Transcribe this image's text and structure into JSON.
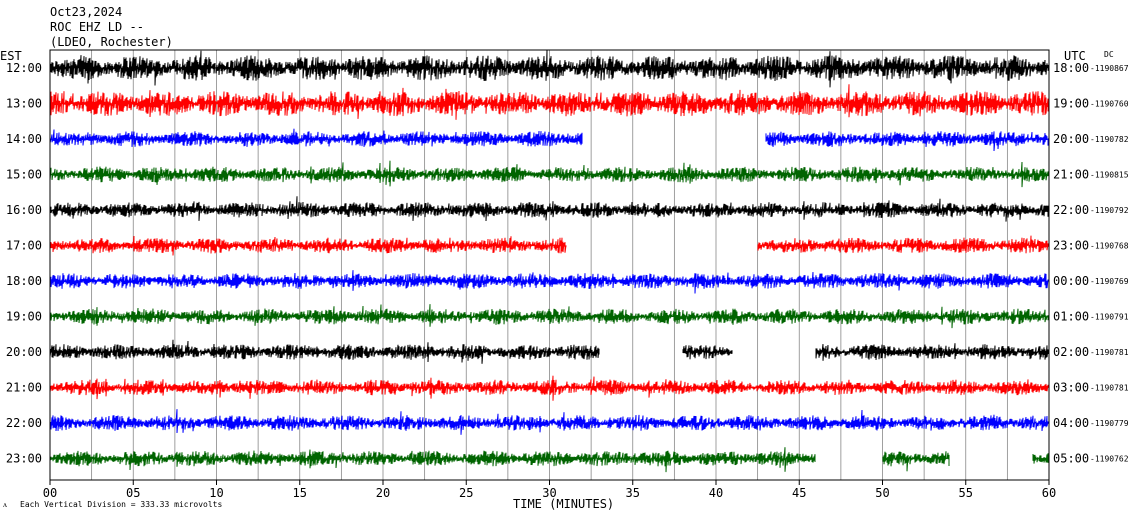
{
  "header": {
    "date": "Oct23,2024",
    "station": "ROC EHZ LD --",
    "network": "(LDEO, Rochester)"
  },
  "left_axis_title": "EST",
  "right_axis_title": "UTC",
  "dc_label": "DC",
  "footer": {
    "time_label": "TIME (MINUTES)",
    "scale_note": "Each Vertical Division =  333.33 microvolts",
    "scale_mark": "ᴧ"
  },
  "chart_data": {
    "type": "line",
    "title": "",
    "xlabel": "TIME (MINUTES)",
    "ylabel": "",
    "xlim": [
      0,
      60
    ],
    "x_ticks": [
      "00",
      "05",
      "10",
      "15",
      "20",
      "25",
      "30",
      "35",
      "40",
      "45",
      "50",
      "55",
      "60"
    ],
    "grid_x_every_minutes": 2.5,
    "trace_colors": [
      "#000000",
      "#ff0000",
      "#0000ff",
      "#006400"
    ],
    "rows": [
      {
        "local": "12:00",
        "utc": "18:00",
        "dc_offset": "-1190867",
        "color": "#000000",
        "amplitude": "high",
        "gaps": []
      },
      {
        "local": "13:00",
        "utc": "19:00",
        "dc_offset": "-1190760",
        "color": "#ff0000",
        "amplitude": "high",
        "gaps": []
      },
      {
        "local": "14:00",
        "utc": "20:00",
        "dc_offset": "-1190782",
        "color": "#0000ff",
        "amplitude": "medium",
        "gaps": [
          [
            32,
            43
          ]
        ]
      },
      {
        "local": "15:00",
        "utc": "21:00",
        "dc_offset": "-1190815",
        "color": "#006400",
        "amplitude": "medium",
        "gaps": []
      },
      {
        "local": "16:00",
        "utc": "22:00",
        "dc_offset": "-1190792",
        "color": "#000000",
        "amplitude": "medium",
        "gaps": []
      },
      {
        "local": "17:00",
        "utc": "23:00",
        "dc_offset": "-1190768",
        "color": "#ff0000",
        "amplitude": "medium",
        "gaps": [
          [
            31,
            42.5
          ]
        ]
      },
      {
        "local": "18:00",
        "utc": "00:00",
        "dc_offset": "-1190769",
        "color": "#0000ff",
        "amplitude": "medium",
        "gaps": []
      },
      {
        "local": "19:00",
        "utc": "01:00",
        "dc_offset": "-1190791",
        "color": "#006400",
        "amplitude": "medium",
        "gaps": []
      },
      {
        "local": "20:00",
        "utc": "02:00",
        "dc_offset": "-1190781",
        "color": "#000000",
        "amplitude": "medium",
        "gaps": [
          [
            33,
            38
          ],
          [
            41,
            46
          ]
        ]
      },
      {
        "local": "21:00",
        "utc": "03:00",
        "dc_offset": "-1190781",
        "color": "#ff0000",
        "amplitude": "medium",
        "gaps": []
      },
      {
        "local": "22:00",
        "utc": "04:00",
        "dc_offset": "-1190779",
        "color": "#0000ff",
        "amplitude": "medium",
        "gaps": []
      },
      {
        "local": "23:00",
        "utc": "05:00",
        "dc_offset": "-1190762",
        "color": "#006400",
        "amplitude": "medium",
        "gaps": [
          [
            46,
            50
          ],
          [
            54,
            59
          ]
        ]
      }
    ]
  }
}
